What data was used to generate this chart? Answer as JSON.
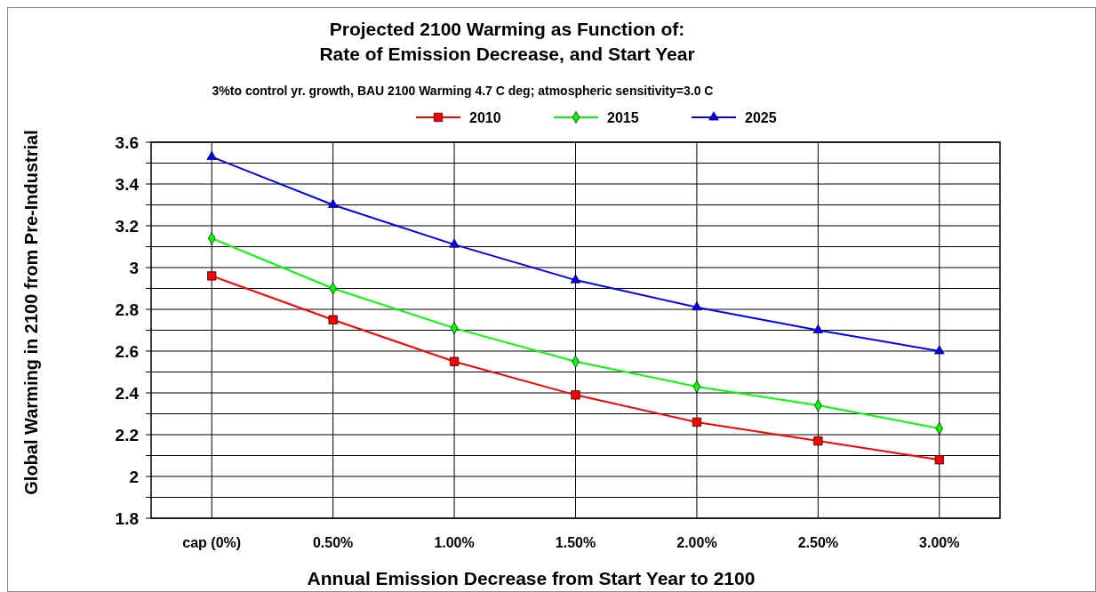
{
  "chart_data": {
    "type": "line",
    "title": "Projected 2100 Warming as Function of:\nRate of Emission Decrease, and Start Year",
    "subtitle": "3%to control yr. growth, BAU 2100 Warming 4.7 C deg; atmospheric sensitivity=3.0 C",
    "xlabel": "Annual Emission Decrease from Start Year to 2100",
    "ylabel": "Global Warming in 2100 from Pre-Industrial",
    "categories": [
      "cap (0%)",
      "0.50%",
      "1.00%",
      "1.50%",
      "2.00%",
      "2.50%",
      "3.00%"
    ],
    "series": [
      {
        "name": "2010",
        "color": "#ff0000",
        "marker": "square",
        "values": [
          2.96,
          2.75,
          2.55,
          2.39,
          2.26,
          2.17,
          2.08
        ]
      },
      {
        "name": "2015",
        "color": "#00ff00",
        "marker": "diamond",
        "values": [
          3.14,
          2.9,
          2.71,
          2.55,
          2.43,
          2.34,
          2.23
        ]
      },
      {
        "name": "2025",
        "color": "#0000ff",
        "marker": "triangle",
        "values": [
          3.53,
          3.3,
          3.11,
          2.94,
          2.81,
          2.7,
          2.6
        ]
      }
    ],
    "ylim": [
      1.8,
      3.6
    ],
    "yticks": [
      1.8,
      {
        "value": 1.9,
        "label": null
      },
      2,
      {
        "value": 2.1,
        "label": null
      },
      2.2,
      {
        "value": 2.3,
        "label": null
      },
      2.4,
      {
        "value": 2.5,
        "label": null
      },
      2.6,
      {
        "value": 2.7,
        "label": null
      },
      2.8,
      {
        "value": 2.9,
        "label": null
      },
      3,
      {
        "value": 3.1,
        "label": null
      },
      3.2,
      {
        "value": 3.3,
        "label": null
      },
      3.4,
      {
        "value": 3.5,
        "label": null
      },
      3.6
    ],
    "grid": true,
    "legend": "top"
  }
}
